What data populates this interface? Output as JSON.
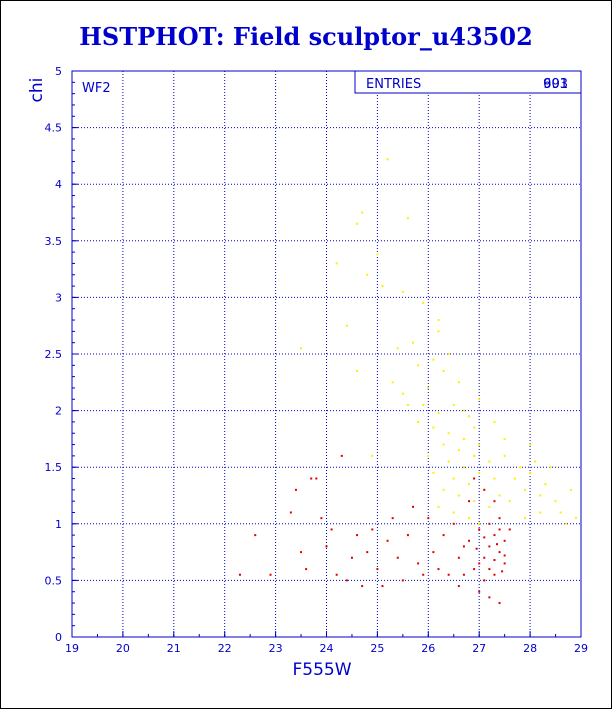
{
  "title": "HSTPHOT: Field sculptor_u43502",
  "chart_data": {
    "type": "scatter",
    "title": "HSTPHOT: Field sculptor_u43502",
    "xlabel": "F555W",
    "ylabel": "chi",
    "xlim": [
      19,
      29
    ],
    "ylim": [
      0,
      5
    ],
    "xticks": [
      "19",
      "20",
      "21",
      "22",
      "23",
      "24",
      "25",
      "26",
      "27",
      "28",
      "29"
    ],
    "yticks": [
      "0",
      "0.5",
      "1",
      "1.5",
      "2",
      "2.5",
      "3",
      "3.5",
      "4",
      "4.5",
      "5"
    ],
    "grid": true,
    "annotation": "WF2",
    "stats_box": {
      "label": "ENTRIES",
      "value": "993",
      "overlap_value": "601"
    },
    "colors": {
      "frame": "#0000cc",
      "grid": "#0000cc",
      "series_a": "#dd0000",
      "series_b": "#ffee00"
    },
    "series": [
      {
        "color": "#ffee00",
        "points": [
          [
            25.2,
            4.22
          ],
          [
            24.7,
            3.75
          ],
          [
            25.6,
            3.7
          ],
          [
            24.6,
            3.65
          ],
          [
            24.2,
            3.3
          ],
          [
            25.0,
            3.38
          ],
          [
            24.8,
            3.2
          ],
          [
            25.5,
            3.05
          ],
          [
            25.1,
            3.1
          ],
          [
            24.4,
            2.75
          ],
          [
            25.9,
            2.95
          ],
          [
            26.2,
            2.7
          ],
          [
            25.7,
            2.6
          ],
          [
            26.1,
            2.45
          ],
          [
            24.6,
            2.35
          ],
          [
            25.3,
            2.25
          ],
          [
            25.8,
            2.4
          ],
          [
            25.5,
            2.15
          ],
          [
            26.0,
            2.2
          ],
          [
            26.3,
            2.35
          ],
          [
            26.6,
            2.25
          ],
          [
            25.9,
            2.05
          ],
          [
            26.2,
            1.98
          ],
          [
            26.5,
            2.05
          ],
          [
            26.8,
            1.95
          ],
          [
            25.6,
            2.05
          ],
          [
            26.1,
            1.85
          ],
          [
            26.4,
            1.8
          ],
          [
            26.7,
            1.75
          ],
          [
            27.0,
            1.7
          ],
          [
            25.8,
            1.9
          ],
          [
            26.3,
            1.7
          ],
          [
            26.6,
            1.65
          ],
          [
            26.9,
            1.6
          ],
          [
            27.2,
            1.55
          ],
          [
            26.0,
            1.6
          ],
          [
            26.4,
            1.55
          ],
          [
            26.7,
            1.5
          ],
          [
            27.0,
            1.45
          ],
          [
            27.3,
            1.4
          ],
          [
            26.1,
            1.45
          ],
          [
            26.5,
            1.4
          ],
          [
            26.8,
            1.35
          ],
          [
            27.1,
            1.3
          ],
          [
            27.4,
            1.25
          ],
          [
            26.3,
            1.3
          ],
          [
            26.6,
            1.25
          ],
          [
            26.9,
            1.2
          ],
          [
            27.2,
            1.15
          ],
          [
            27.6,
            1.2
          ],
          [
            27.9,
            1.3
          ],
          [
            28.2,
            1.25
          ],
          [
            28.5,
            1.2
          ],
          [
            28.8,
            1.3
          ],
          [
            27.7,
            1.4
          ],
          [
            28.0,
            1.45
          ],
          [
            28.3,
            1.35
          ],
          [
            28.6,
            1.1
          ],
          [
            28.9,
            1.05
          ],
          [
            27.5,
            1.6
          ],
          [
            28.1,
            1.55
          ],
          [
            26.2,
            1.15
          ],
          [
            26.5,
            1.1
          ],
          [
            26.8,
            1.05
          ],
          [
            27.0,
            1.0
          ],
          [
            26.4,
            2.5
          ],
          [
            27.0,
            2.1
          ],
          [
            26.9,
            1.85
          ],
          [
            27.5,
            1.75
          ],
          [
            28.0,
            1.7
          ],
          [
            26.2,
            2.8
          ],
          [
            25.4,
            2.55
          ],
          [
            23.5,
            2.55
          ],
          [
            24.9,
            1.6
          ],
          [
            26.7,
            2.0
          ],
          [
            27.3,
            1.9
          ],
          [
            27.8,
            1.5
          ],
          [
            28.4,
            1.5
          ],
          [
            28.7,
            1.0
          ],
          [
            27.9,
            1.05
          ],
          [
            28.2,
            1.1
          ]
        ]
      },
      {
        "color": "#dd0000",
        "points": [
          [
            22.6,
            0.9
          ],
          [
            22.3,
            0.55
          ],
          [
            22.9,
            0.55
          ],
          [
            23.3,
            1.1
          ],
          [
            23.5,
            0.75
          ],
          [
            23.7,
            1.4
          ],
          [
            23.4,
            1.3
          ],
          [
            23.8,
            1.4
          ],
          [
            23.6,
            0.6
          ],
          [
            24.0,
            0.8
          ],
          [
            24.2,
            0.55
          ],
          [
            24.5,
            0.7
          ],
          [
            24.8,
            0.75
          ],
          [
            24.3,
            1.6
          ],
          [
            24.6,
            0.9
          ],
          [
            25.0,
            0.6
          ],
          [
            25.2,
            0.85
          ],
          [
            25.4,
            0.7
          ],
          [
            25.6,
            0.9
          ],
          [
            25.8,
            0.65
          ],
          [
            24.4,
            0.5
          ],
          [
            24.7,
            0.45
          ],
          [
            25.1,
            0.45
          ],
          [
            25.5,
            0.5
          ],
          [
            25.9,
            0.55
          ],
          [
            26.1,
            0.75
          ],
          [
            26.3,
            0.9
          ],
          [
            26.0,
            1.05
          ],
          [
            26.2,
            0.6
          ],
          [
            26.4,
            0.55
          ],
          [
            26.6,
            0.7
          ],
          [
            26.8,
            0.85
          ],
          [
            27.0,
            0.95
          ],
          [
            26.5,
            1.0
          ],
          [
            26.7,
            0.55
          ],
          [
            26.9,
            0.6
          ],
          [
            27.1,
            0.7
          ],
          [
            27.2,
            0.8
          ],
          [
            27.3,
            0.9
          ],
          [
            27.4,
            0.75
          ],
          [
            27.5,
            0.65
          ],
          [
            27.2,
            1.0
          ],
          [
            27.4,
            1.05
          ],
          [
            27.1,
            0.5
          ],
          [
            27.3,
            0.55
          ],
          [
            27.5,
            0.85
          ],
          [
            27.6,
            0.95
          ],
          [
            27.0,
            0.4
          ],
          [
            27.2,
            0.35
          ],
          [
            27.4,
            0.3
          ],
          [
            26.8,
            1.2
          ],
          [
            27.1,
            1.3
          ],
          [
            26.9,
            1.4
          ],
          [
            27.3,
            1.2
          ],
          [
            25.3,
            1.05
          ],
          [
            24.9,
            0.95
          ],
          [
            25.7,
            1.15
          ],
          [
            23.9,
            1.05
          ],
          [
            24.1,
            0.95
          ],
          [
            26.6,
            0.45
          ],
          [
            27.0,
            0.65
          ],
          [
            27.2,
            0.6
          ],
          [
            27.4,
            0.95
          ],
          [
            27.5,
            0.72
          ],
          [
            27.3,
            0.68
          ],
          [
            27.1,
            0.88
          ],
          [
            26.95,
            0.78
          ],
          [
            27.45,
            0.58
          ],
          [
            27.35,
            0.82
          ],
          [
            26.7,
            0.8
          ]
        ]
      }
    ]
  }
}
